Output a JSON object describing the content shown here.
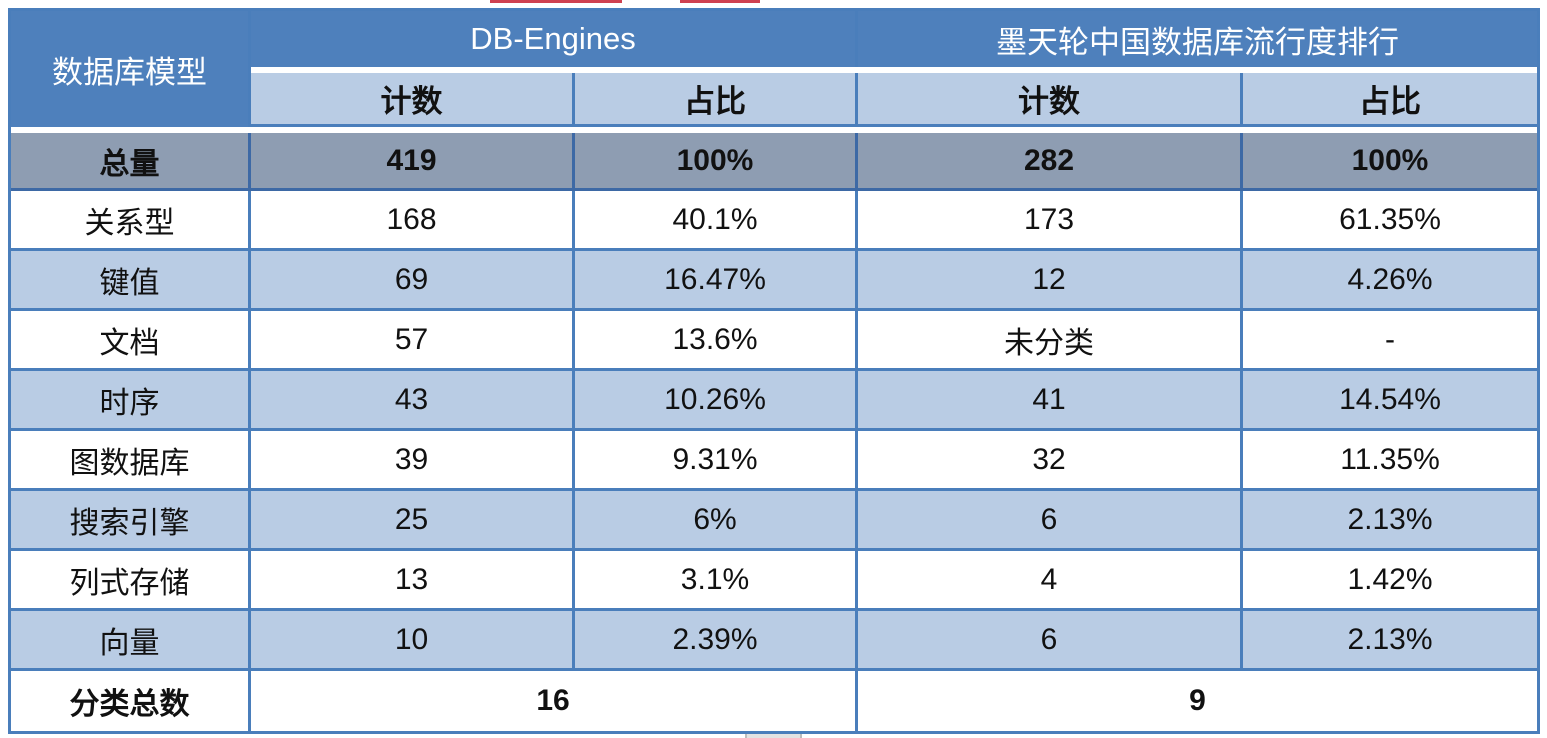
{
  "chart_data": {
    "type": "table",
    "header": {
      "corner": "数据库模型",
      "groups": [
        "DB-Engines",
        "墨天轮中国数据库流行度排行"
      ],
      "subcolumns": [
        "计数",
        "占比",
        "计数",
        "占比"
      ]
    },
    "total_row": [
      "总量",
      "419",
      "100%",
      "282",
      "100%"
    ],
    "rows": [
      [
        "关系型",
        "168",
        "40.1%",
        "173",
        "61.35%"
      ],
      [
        "键值",
        "69",
        "16.47%",
        "12",
        "4.26%"
      ],
      [
        "文档",
        "57",
        "13.6%",
        "未分类",
        "-"
      ],
      [
        "时序",
        "43",
        "10.26%",
        "41",
        "14.54%"
      ],
      [
        "图数据库",
        "39",
        "9.31%",
        "32",
        "11.35%"
      ],
      [
        "搜索引擎",
        "25",
        "6%",
        "6",
        "2.13%"
      ],
      [
        "列式存储",
        "13",
        "3.1%",
        "4",
        "1.42%"
      ],
      [
        "向量",
        "10",
        "2.39%",
        "6",
        "2.13%"
      ]
    ],
    "footer_row": [
      "分类总数",
      "16",
      "9"
    ],
    "layout": "two column-groups (DB-Engines / 墨天轮) each with 计数+占比; total row highlighted gray; alternating white and light-blue body rows; footer values merged across each group"
  },
  "colors": {
    "header_blue": "#4e80bc",
    "subheader_light_blue": "#b9cce4",
    "total_row_gray": "#8e9db2",
    "row_alt_blue": "#b9cce4",
    "border_blue": "#4a7ebb",
    "total_border_dark": "#3d69a5",
    "artifact_red": "#cf4150"
  }
}
